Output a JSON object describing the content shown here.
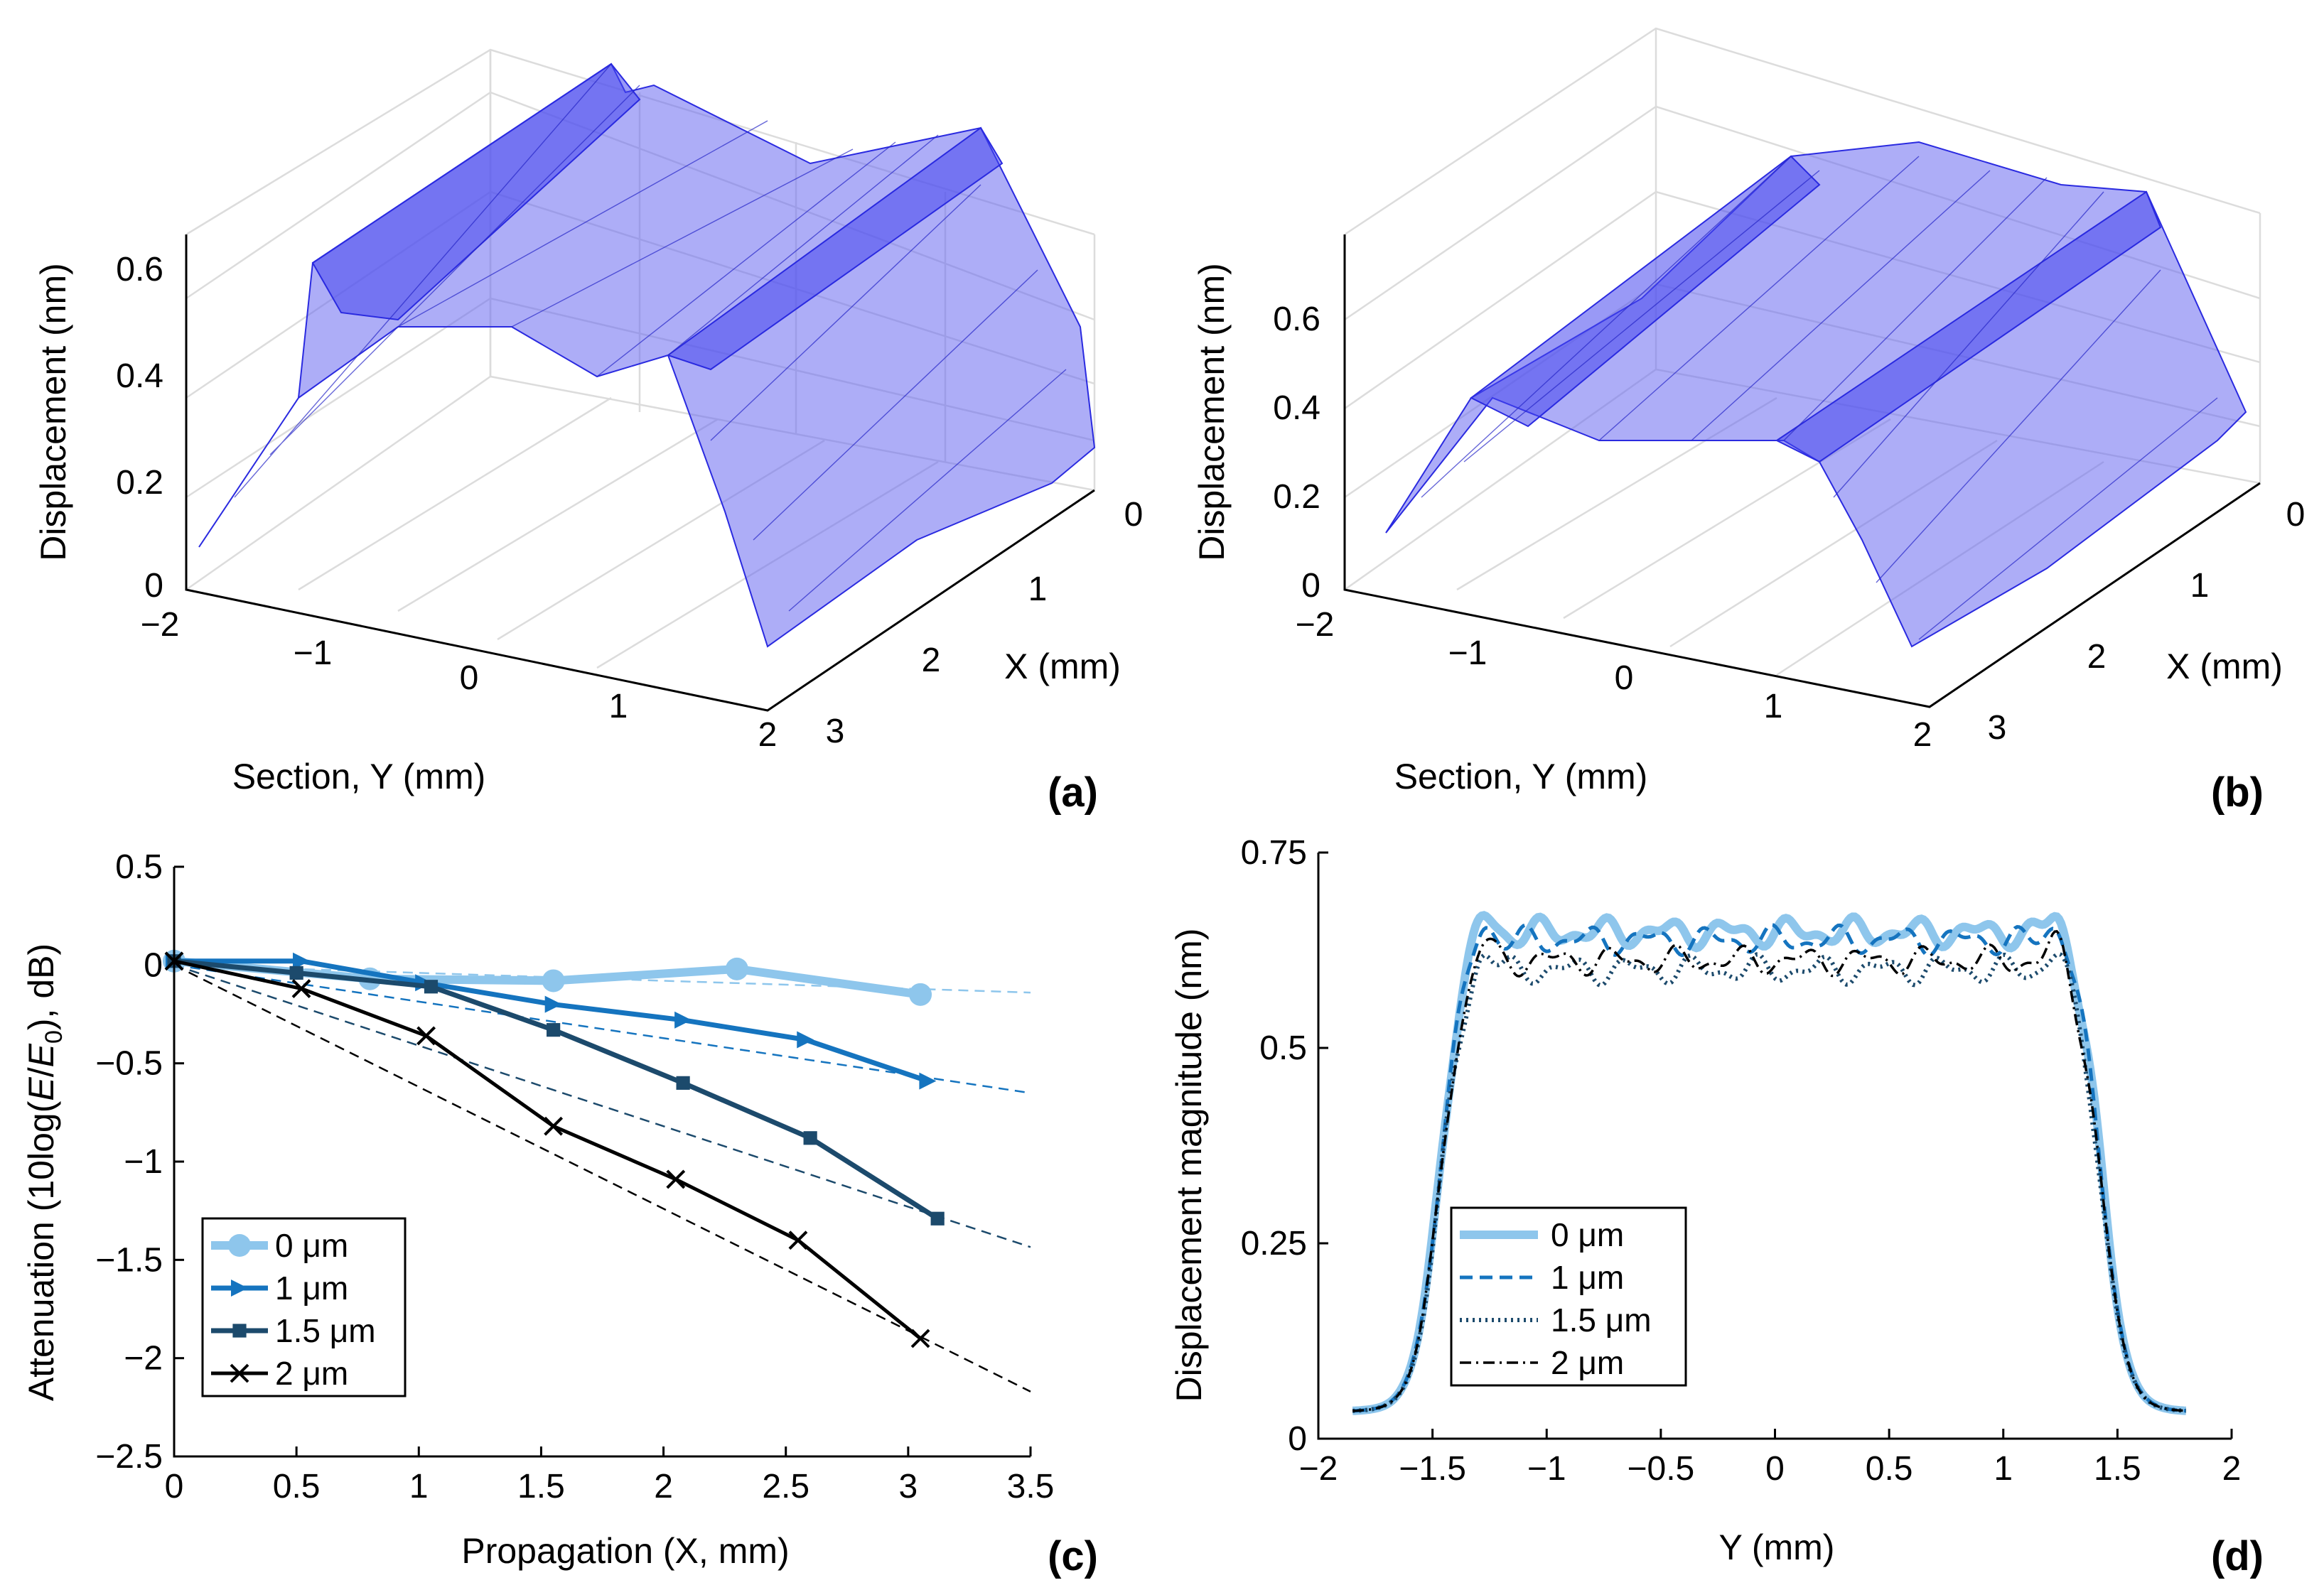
{
  "colors": {
    "light_blue": "#8ec6ec",
    "mid_blue": "#1574bf",
    "dark_navy": "#1c4a6c",
    "black": "#000000",
    "surface_fill": "#6a6af0",
    "surface_edge": "#2a2ae0"
  },
  "chart_data": [
    {
      "id": "a",
      "type": "surface3d",
      "panel_label": "(a)",
      "zlabel": "Displacement (nm)",
      "xlabel": "X (mm)",
      "ylabel": "Section, Y (mm)",
      "zticks": [
        "0",
        "0.2",
        "0.4",
        "0.6"
      ],
      "yticks": [
        "−2",
        "−1",
        "0",
        "1",
        "2"
      ],
      "xticks": [
        "0",
        "1",
        "2",
        "3"
      ],
      "zlim": [
        0,
        0.65
      ]
    },
    {
      "id": "b",
      "type": "surface3d",
      "panel_label": "(b)",
      "zlabel": "Displacement (nm)",
      "xlabel": "X (mm)",
      "ylabel": "Section, Y (mm)",
      "zticks": [
        "0",
        "0.2",
        "0.4",
        "0.6"
      ],
      "yticks": [
        "−2",
        "−1",
        "0",
        "1",
        "2"
      ],
      "xticks": [
        "0",
        "1",
        "2",
        "3"
      ],
      "zlim": [
        0,
        0.75
      ]
    },
    {
      "id": "c",
      "type": "line",
      "panel_label": "(c)",
      "xlabel": "Propagation (X, mm)",
      "ylabel_pre": "Attenuation (10log(",
      "ylabel_E": "E",
      "ylabel_slash": "/",
      "ylabel_E0": "E",
      "ylabel_sub": "0",
      "ylabel_post": "), dB)",
      "xlim": [
        0,
        3.5
      ],
      "ylim": [
        -2.5,
        0.5
      ],
      "xticks": [
        "0",
        "0.5",
        "1",
        "1.5",
        "2",
        "2.5",
        "3",
        "3.5"
      ],
      "yticks": [
        "0.5",
        "0",
        "−0.5",
        "−1",
        "−1.5",
        "−2",
        "−2.5"
      ],
      "legend_position": "bottom-left",
      "series": [
        {
          "name": "0 μm",
          "marker": "circle",
          "color": "#8ec6ec",
          "x": [
            0,
            0.8,
            1.55,
            2.3,
            3.05
          ],
          "y": [
            0.02,
            -0.07,
            -0.08,
            -0.02,
            -0.15
          ],
          "fit": {
            "x0": 0,
            "x1": 3.5,
            "slope": -0.04,
            "intercept": 0
          }
        },
        {
          "name": "1 μm",
          "marker": "triangle-right",
          "color": "#1574bf",
          "x": [
            0,
            0.52,
            1.02,
            1.55,
            2.08,
            2.58,
            3.08
          ],
          "y": [
            0.02,
            0.02,
            -0.09,
            -0.2,
            -0.28,
            -0.38,
            -0.59
          ],
          "fit": {
            "x0": 0,
            "x1": 3.5,
            "slope": -0.186,
            "intercept": 0
          }
        },
        {
          "name": "1.5 μm",
          "marker": "square",
          "color": "#1c4a6c",
          "x": [
            0,
            0.5,
            1.05,
            1.55,
            2.08,
            2.6,
            3.12
          ],
          "y": [
            0.02,
            -0.04,
            -0.11,
            -0.33,
            -0.6,
            -0.88,
            -1.29
          ],
          "fit": {
            "x0": 0,
            "x1": 3.5,
            "slope": -0.41,
            "intercept": 0
          }
        },
        {
          "name": "2 μm",
          "marker": "x",
          "color": "#000000",
          "x": [
            0,
            0.52,
            1.03,
            1.55,
            2.05,
            2.55,
            3.05
          ],
          "y": [
            0.02,
            -0.12,
            -0.36,
            -0.82,
            -1.09,
            -1.4,
            -1.9
          ],
          "fit": {
            "x0": 0,
            "x1": 3.5,
            "slope": -0.62,
            "intercept": 0
          }
        }
      ]
    },
    {
      "id": "d",
      "type": "line",
      "panel_label": "(d)",
      "xlabel": "Y (mm)",
      "ylabel": "Displacement magnitude (nm)",
      "xlim": [
        -2,
        2
      ],
      "ylim": [
        0,
        0.75
      ],
      "xticks": [
        "−2",
        "−1.5",
        "−1",
        "−0.5",
        "0",
        "0.5",
        "1",
        "1.5",
        "2"
      ],
      "yticks": [
        "0.75",
        "0.5",
        "0.25",
        "0"
      ],
      "legend_position": "bottom-left",
      "series": [
        {
          "name": "0 μm",
          "style": "solid-thick",
          "color": "#8ec6ec",
          "plateau": 0.648,
          "peak": 0.685
        },
        {
          "name": "1 μm",
          "style": "dashed",
          "color": "#1574bf",
          "plateau": 0.638,
          "peak": 0.675
        },
        {
          "name": "1.5 μm",
          "style": "dotted",
          "color": "#1c4a6c",
          "plateau": 0.6,
          "peak": 0.64
        },
        {
          "name": "2 μm",
          "style": "dashdot",
          "color": "#000000",
          "plateau": 0.612,
          "peak": 0.65
        }
      ]
    }
  ]
}
